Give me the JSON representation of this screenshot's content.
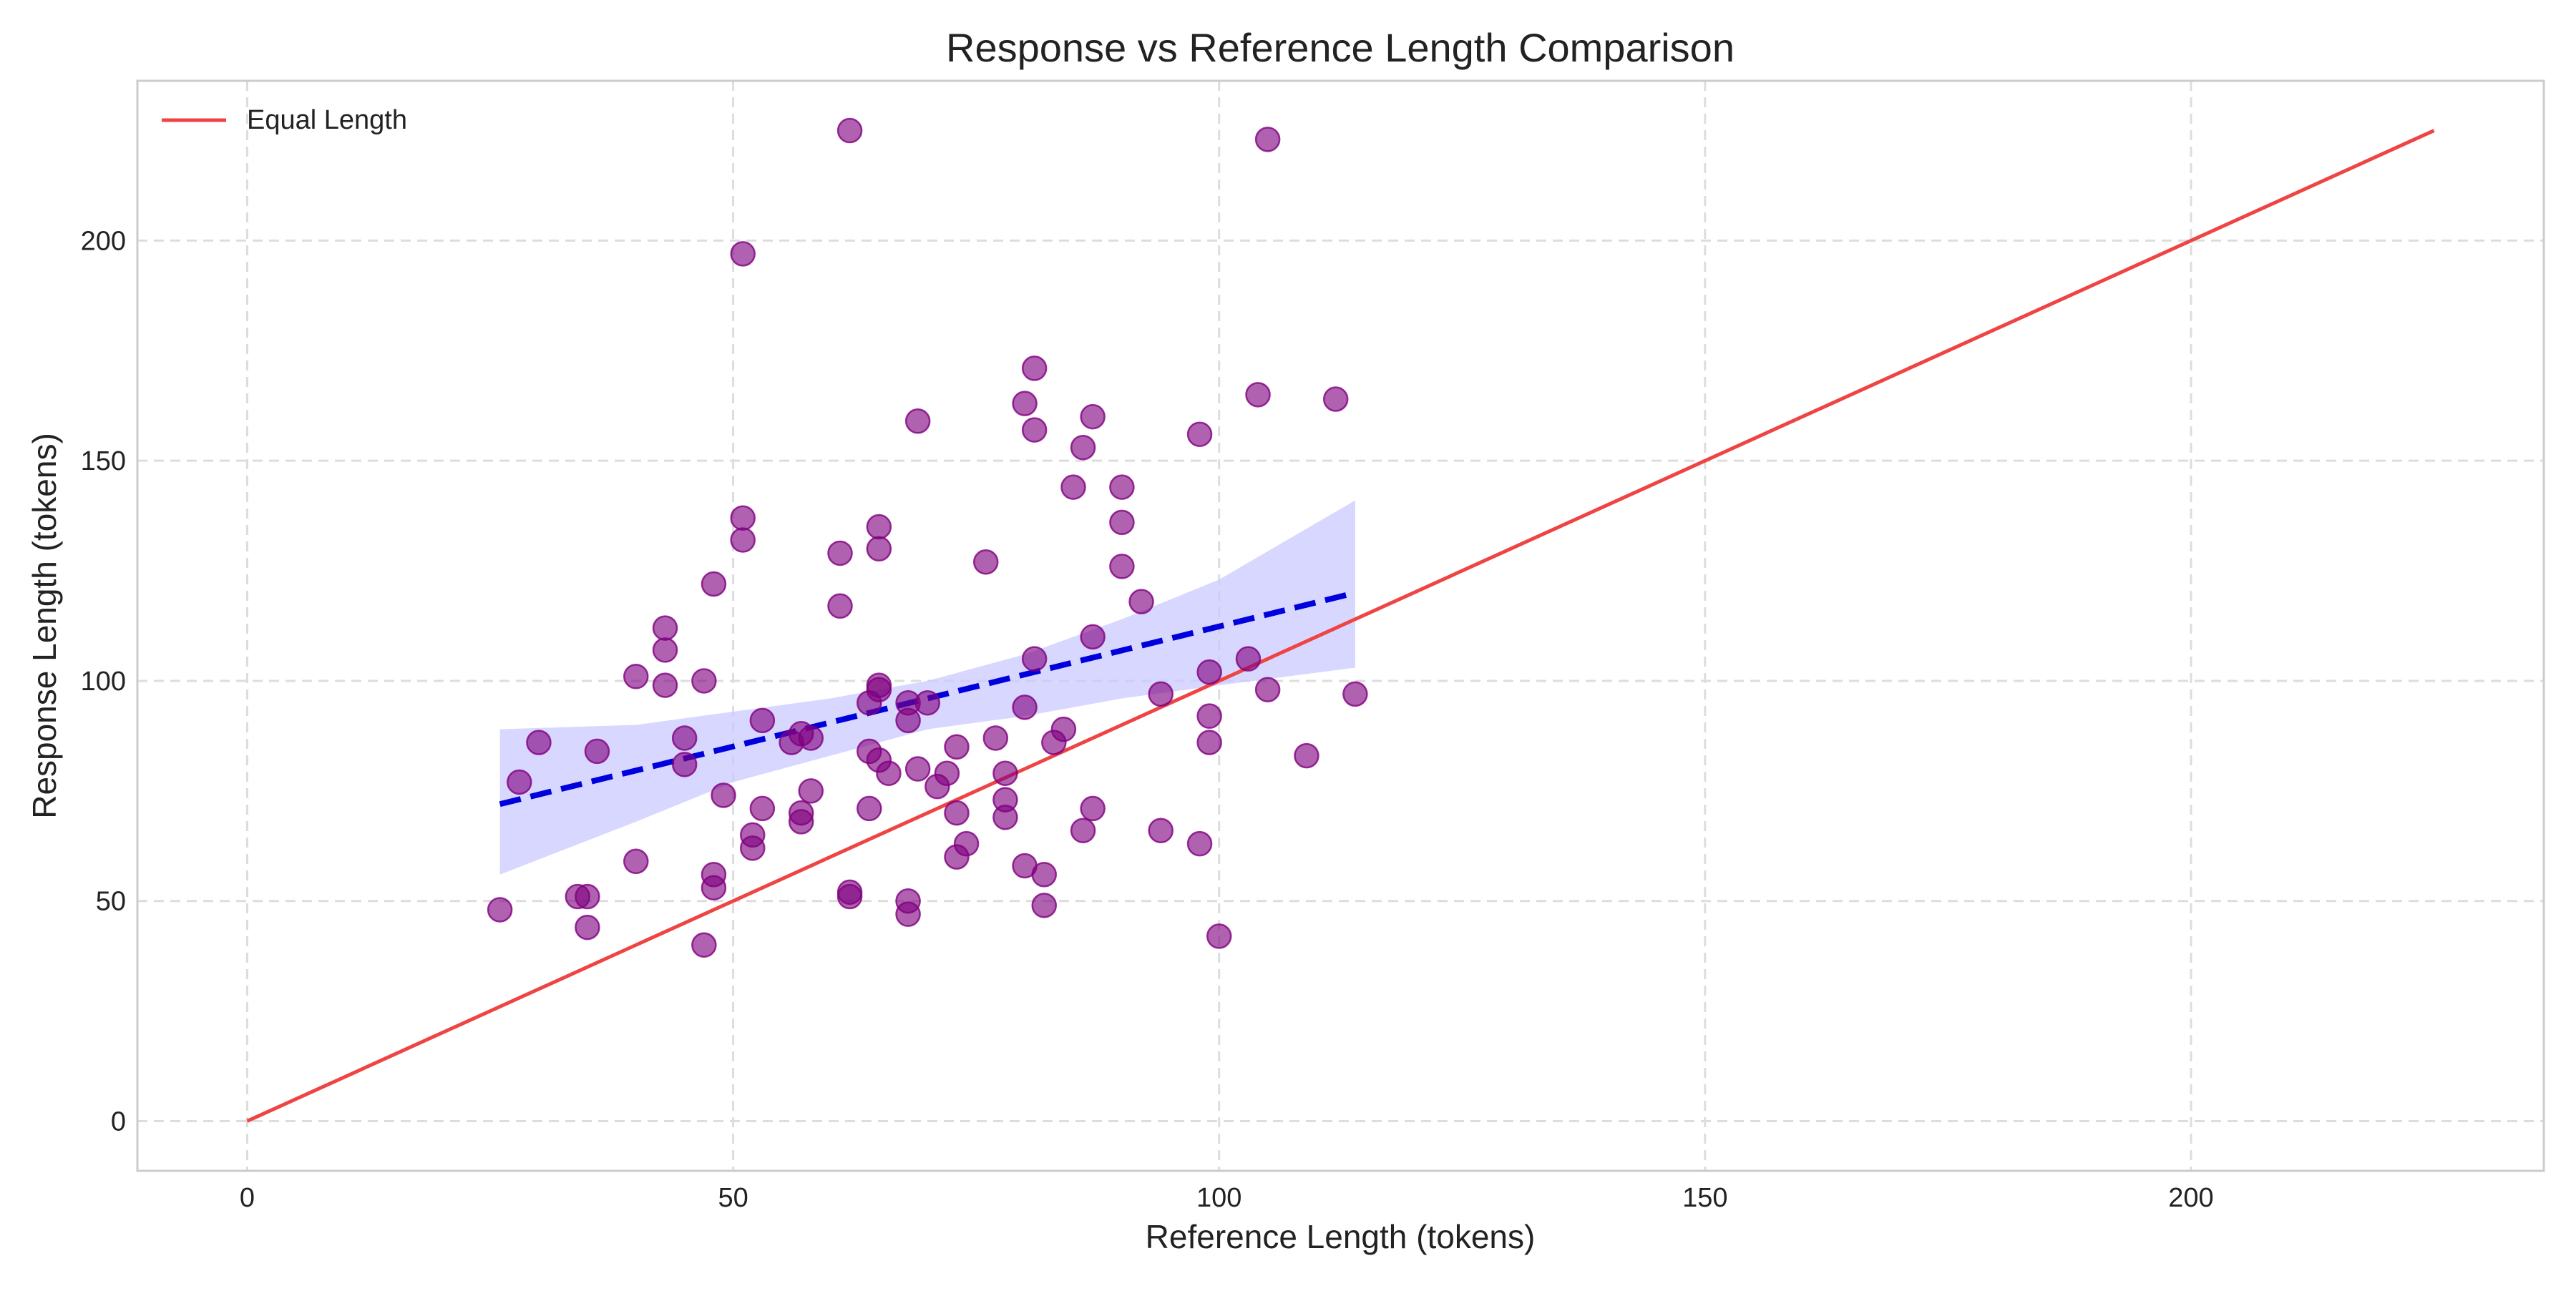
{
  "chart_data": {
    "type": "scatter",
    "title": "Response vs Reference Length Comparison",
    "xlabel": "Reference Length (tokens)",
    "ylabel": "Response Length (tokens)",
    "xlim": [
      -11.3,
      236.3
    ],
    "ylim": [
      -11.3,
      236.3
    ],
    "xticks": [
      0,
      50,
      100,
      150,
      200
    ],
    "yticks": [
      0,
      50,
      100,
      150,
      200
    ],
    "grid": true,
    "legend": {
      "location": "top-left",
      "entries": [
        "Equal Length"
      ]
    },
    "colors": {
      "points": "#800080",
      "equal_line": "#ef4444",
      "trend_line": "#0000dd",
      "confidence_band": "#c8c8ff",
      "frame": "#cccccc",
      "grid": "#dddddd"
    },
    "equal_line": {
      "name": "Equal Length",
      "x": [
        0,
        225
      ],
      "y": [
        0,
        225
      ]
    },
    "trend_line": {
      "x": [
        26,
        114
      ],
      "y": [
        72,
        120
      ]
    },
    "confidence_band": {
      "x": [
        26,
        40,
        50,
        60,
        70,
        80,
        90,
        100,
        114
      ],
      "upper": [
        89,
        90,
        93,
        96,
        100,
        106,
        114,
        123,
        141
      ],
      "lower": [
        56,
        68,
        77,
        83,
        89,
        92,
        96,
        99,
        103
      ]
    },
    "points": [
      [
        62,
        225
      ],
      [
        105,
        223
      ],
      [
        51,
        197
      ],
      [
        81,
        171
      ],
      [
        104,
        165
      ],
      [
        112,
        164
      ],
      [
        80,
        163
      ],
      [
        87,
        160
      ],
      [
        69,
        159
      ],
      [
        81,
        157
      ],
      [
        98,
        156
      ],
      [
        86,
        153
      ],
      [
        85,
        144
      ],
      [
        90,
        144
      ],
      [
        51,
        137
      ],
      [
        90,
        136
      ],
      [
        65,
        135
      ],
      [
        51,
        132
      ],
      [
        65,
        130
      ],
      [
        61,
        129
      ],
      [
        76,
        127
      ],
      [
        90,
        126
      ],
      [
        48,
        122
      ],
      [
        92,
        118
      ],
      [
        61,
        117
      ],
      [
        43,
        112
      ],
      [
        87,
        110
      ],
      [
        43,
        107
      ],
      [
        81,
        105
      ],
      [
        103,
        105
      ],
      [
        99,
        102
      ],
      [
        40,
        101
      ],
      [
        47,
        100
      ],
      [
        43,
        99
      ],
      [
        65,
        99
      ],
      [
        65,
        98
      ],
      [
        105,
        98
      ],
      [
        94,
        97
      ],
      [
        114,
        97
      ],
      [
        64,
        95
      ],
      [
        68,
        95
      ],
      [
        70,
        95
      ],
      [
        80,
        94
      ],
      [
        99,
        92
      ],
      [
        53,
        91
      ],
      [
        68,
        91
      ],
      [
        84,
        89
      ],
      [
        57,
        88
      ],
      [
        45,
        87
      ],
      [
        58,
        87
      ],
      [
        77,
        87
      ],
      [
        30,
        86
      ],
      [
        56,
        86
      ],
      [
        83,
        86
      ],
      [
        99,
        86
      ],
      [
        36,
        84
      ],
      [
        64,
        84
      ],
      [
        73,
        85
      ],
      [
        109,
        83
      ],
      [
        65,
        82
      ],
      [
        45,
        81
      ],
      [
        69,
        80
      ],
      [
        66,
        79
      ],
      [
        72,
        79
      ],
      [
        78,
        79
      ],
      [
        28,
        77
      ],
      [
        71,
        76
      ],
      [
        58,
        75
      ],
      [
        49,
        74
      ],
      [
        78,
        73
      ],
      [
        53,
        71
      ],
      [
        64,
        71
      ],
      [
        87,
        71
      ],
      [
        57,
        70
      ],
      [
        73,
        70
      ],
      [
        57,
        68
      ],
      [
        78,
        69
      ],
      [
        86,
        66
      ],
      [
        94,
        66
      ],
      [
        52,
        65
      ],
      [
        74,
        63
      ],
      [
        98,
        63
      ],
      [
        52,
        62
      ],
      [
        73,
        60
      ],
      [
        40,
        59
      ],
      [
        80,
        58
      ],
      [
        48,
        56
      ],
      [
        82,
        56
      ],
      [
        48,
        53
      ],
      [
        62,
        52
      ],
      [
        34,
        51
      ],
      [
        35,
        51
      ],
      [
        62,
        51
      ],
      [
        68,
        50
      ],
      [
        82,
        49
      ],
      [
        26,
        48
      ],
      [
        68,
        47
      ],
      [
        35,
        44
      ],
      [
        100,
        42
      ],
      [
        47,
        40
      ]
    ]
  }
}
